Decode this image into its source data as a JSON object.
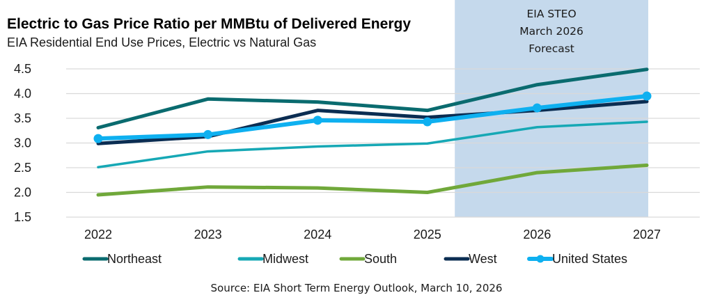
{
  "chart_data": {
    "type": "line",
    "title": "Electric to Gas Price Ratio per MMBtu of Delivered Energy",
    "subtitle": "EIA Residential End Use Prices, Electric vs Natural Gas",
    "xlabel": "",
    "ylabel": "",
    "categories": [
      "2022",
      "2023",
      "2024",
      "2025",
      "2026",
      "2027"
    ],
    "ylim": [
      1.5,
      4.5
    ],
    "yticks": [
      "4.5",
      "4.0",
      "3.5",
      "3.0",
      "2.5",
      "2.0",
      "1.5"
    ],
    "ytick_values": [
      4.5,
      4.0,
      3.5,
      3.0,
      2.5,
      2.0,
      1.5
    ],
    "grid": true,
    "legend_position": "bottom",
    "forecast_region": {
      "start": 2025.25,
      "end": 2027,
      "color": "#c5d9ec",
      "label_lines": [
        "EIA STEO",
        "March 2026",
        "Forecast"
      ]
    },
    "series": [
      {
        "name": "Northeast",
        "color": "#0a6b6f",
        "markers": false,
        "values": [
          3.31,
          3.89,
          3.83,
          3.66,
          4.18,
          4.49
        ]
      },
      {
        "name": "Midwest",
        "color": "#16a8b5",
        "markers": false,
        "values": [
          2.51,
          2.83,
          2.93,
          2.99,
          3.32,
          3.43
        ]
      },
      {
        "name": "South",
        "color": "#70a83a",
        "markers": false,
        "values": [
          1.95,
          2.11,
          2.09,
          2.0,
          2.4,
          2.55
        ]
      },
      {
        "name": "West",
        "color": "#0b2d52",
        "markers": false,
        "values": [
          2.99,
          3.13,
          3.66,
          3.52,
          3.66,
          3.84
        ]
      },
      {
        "name": "United States",
        "color": "#0eb0f0",
        "markers": true,
        "values": [
          3.09,
          3.17,
          3.46,
          3.43,
          3.71,
          3.95
        ]
      }
    ],
    "source": "Source: EIA Short Term Energy Outlook, March 10, 2026"
  }
}
